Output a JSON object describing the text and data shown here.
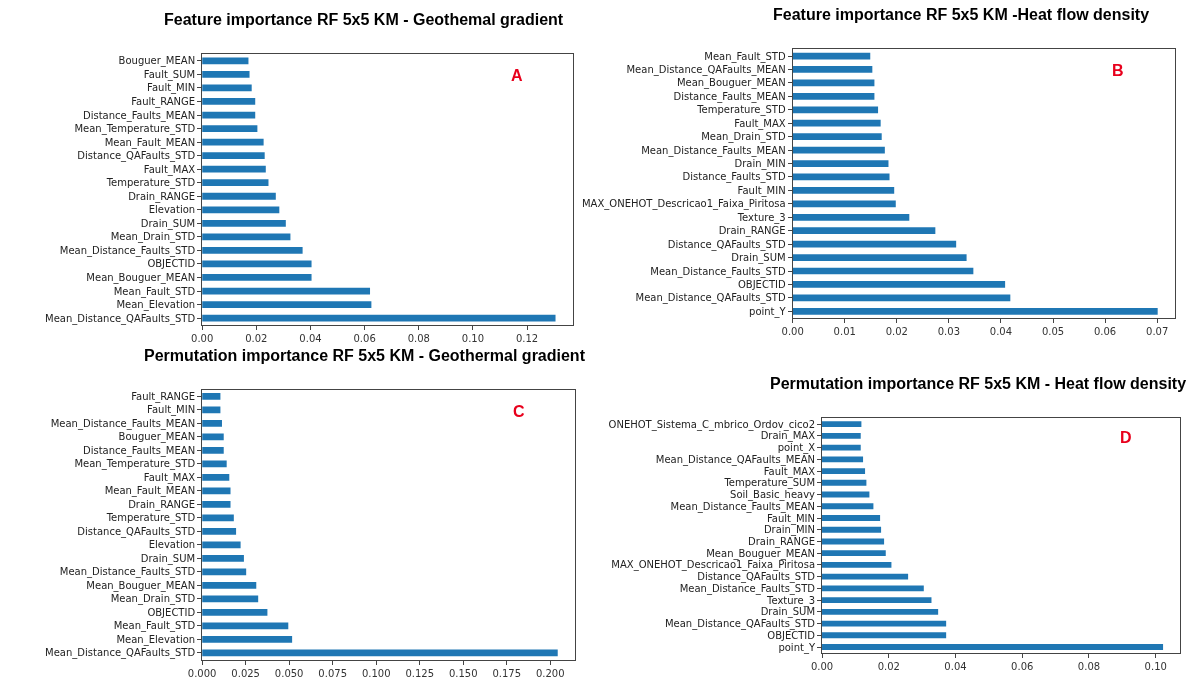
{
  "chart_data": [
    {
      "type": "bar",
      "orientation": "horizontal",
      "title": "Feature importance RF 5x5 KM - Geothemal gradient",
      "annotations": [
        "A"
      ],
      "color": "#1f77b4",
      "categories": [
        "Bouguer_MEAN",
        "Fault_SUM",
        "Fault_MIN",
        "Fault_RANGE",
        "Distance_Faults_MEAN",
        "Mean_Temperature_STD",
        "Mean_Fault_MEAN",
        "Distance_QAFaults_STD",
        "Fault_MAX",
        "Temperature_STD",
        "Drain_RANGE",
        "Elevation",
        "Drain_SUM",
        "Mean_Drain_STD",
        "Mean_Distance_Faults_STD",
        "OBJECTID",
        "Mean_Bouguer_MEAN",
        "Mean_Fault_STD",
        "Mean_Elevation",
        "Mean_Distance_QAFaults_STD"
      ],
      "values": [
        0.0171,
        0.0175,
        0.0183,
        0.0196,
        0.0196,
        0.0204,
        0.0227,
        0.0231,
        0.0235,
        0.0245,
        0.0272,
        0.0285,
        0.0309,
        0.0326,
        0.0371,
        0.0404,
        0.0404,
        0.062,
        0.0625,
        0.1305
      ],
      "xlim": [
        0,
        0.137
      ],
      "xticks": [
        {
          "value": 0,
          "label": "0.00"
        },
        {
          "value": 0.02,
          "label": "0.02"
        },
        {
          "value": 0.04,
          "label": "0.04"
        },
        {
          "value": 0.06,
          "label": "0.06"
        },
        {
          "value": 0.08,
          "label": "0.08"
        },
        {
          "value": 0.1,
          "label": "0.10"
        },
        {
          "value": 0.12,
          "label": "0.12"
        }
      ]
    },
    {
      "type": "bar",
      "orientation": "horizontal",
      "title": "Feature importance RF 5x5 KM -Heat flow density",
      "annotations": [
        "B"
      ],
      "color": "#1f77b4",
      "categories": [
        "Mean_Fault_STD",
        "Mean_Distance_QAFaults_MEAN",
        "Mean_Bouguer_MEAN",
        "Distance_Faults_MEAN",
        "Temperature_STD",
        "Fault_MAX",
        "Mean_Drain_STD",
        "Mean_Distance_Faults_MEAN",
        "Drain_MIN",
        "Distance_Faults_STD",
        "Fault_MIN",
        "MAX_ONEHOT_Descricao1_Faixa_Piritosa",
        "Texture_3",
        "Drain_RANGE",
        "Distance_QAFaults_STD",
        "Drain_SUM",
        "Mean_Distance_Faults_STD",
        "OBJECTID",
        "Mean_Distance_QAFaults_STD",
        "point_Y"
      ],
      "values": [
        0.0149,
        0.0153,
        0.0157,
        0.0157,
        0.0164,
        0.0169,
        0.0171,
        0.0177,
        0.0184,
        0.0186,
        0.0195,
        0.0198,
        0.0224,
        0.0274,
        0.0314,
        0.0334,
        0.0347,
        0.0408,
        0.0418,
        0.0701
      ],
      "xlim": [
        0,
        0.0735
      ],
      "xticks": [
        {
          "value": 0,
          "label": "0.00"
        },
        {
          "value": 0.01,
          "label": "0.01"
        },
        {
          "value": 0.02,
          "label": "0.02"
        },
        {
          "value": 0.03,
          "label": "0.03"
        },
        {
          "value": 0.04,
          "label": "0.04"
        },
        {
          "value": 0.05,
          "label": "0.05"
        },
        {
          "value": 0.06,
          "label": "0.06"
        },
        {
          "value": 0.07,
          "label": "0.07"
        }
      ]
    },
    {
      "type": "bar",
      "orientation": "horizontal",
      "title": "Permutation importance RF 5x5 KM - Geothermal gradient",
      "annotations": [
        "C"
      ],
      "color": "#1f77b4",
      "categories": [
        "Fault_RANGE",
        "Fault_MIN",
        "Mean_Distance_Faults_MEAN",
        "Bouguer_MEAN",
        "Distance_Faults_MEAN",
        "Mean_Temperature_STD",
        "Fault_MAX",
        "Mean_Fault_MEAN",
        "Drain_RANGE",
        "Temperature_STD",
        "Distance_QAFaults_STD",
        "Elevation",
        "Drain_SUM",
        "Mean_Distance_Faults_STD",
        "Mean_Bouguer_MEAN",
        "Mean_Drain_STD",
        "OBJECTID",
        "Mean_Fault_STD",
        "Mean_Elevation",
        "Mean_Distance_QAFaults_STD"
      ],
      "values": [
        0.0105,
        0.0105,
        0.0114,
        0.0124,
        0.0124,
        0.0141,
        0.0156,
        0.0163,
        0.0163,
        0.0182,
        0.0195,
        0.0221,
        0.024,
        0.0253,
        0.0311,
        0.0322,
        0.0375,
        0.0495,
        0.0517,
        0.2043
      ],
      "xlim": [
        0,
        0.2145
      ],
      "xticks": [
        {
          "value": 0,
          "label": "0.000"
        },
        {
          "value": 0.025,
          "label": "0.025"
        },
        {
          "value": 0.05,
          "label": "0.050"
        },
        {
          "value": 0.075,
          "label": "0.075"
        },
        {
          "value": 0.1,
          "label": "0.100"
        },
        {
          "value": 0.125,
          "label": "0.125"
        },
        {
          "value": 0.15,
          "label": "0.150"
        },
        {
          "value": 0.175,
          "label": "0.175"
        },
        {
          "value": 0.2,
          "label": "0.200"
        }
      ]
    },
    {
      "type": "bar",
      "orientation": "horizontal",
      "title": "Permutation importance RF 5x5 KM - Heat flow density",
      "annotations": [
        "D"
      ],
      "color": "#1f77b4",
      "categories": [
        "ONEHOT_Sistema_C_mbrico_Ordov_cico2",
        "Drain_MAX",
        "point_X",
        "Mean_Distance_QAFaults_MEAN",
        "Fault_MAX",
        "Temperature_SUM",
        "Soil_Basic_heavy",
        "Mean_Distance_Faults_MEAN",
        "Fault_MIN",
        "Drain_MIN",
        "Drain_RANGE",
        "Mean_Bouguer_MEAN",
        "MAX_ONEHOT_Descricao1_Faixa_Piritosa",
        "Distance_QAFaults_STD",
        "Mean_Distance_Faults_STD",
        "Texture_3",
        "Drain_SUM",
        "Mean_Distance_QAFaults_STD",
        "OBJECTID",
        "point_Y"
      ],
      "values": [
        0.0118,
        0.0116,
        0.0116,
        0.0123,
        0.0129,
        0.0133,
        0.0142,
        0.0154,
        0.0174,
        0.0177,
        0.0186,
        0.0191,
        0.0208,
        0.0258,
        0.0305,
        0.0328,
        0.0348,
        0.0372,
        0.0372,
        0.1022
      ],
      "xlim": [
        0,
        0.1073
      ],
      "xticks": [
        {
          "value": 0,
          "label": "0.00"
        },
        {
          "value": 0.02,
          "label": "0.02"
        },
        {
          "value": 0.04,
          "label": "0.04"
        },
        {
          "value": 0.06,
          "label": "0.06"
        },
        {
          "value": 0.08,
          "label": "0.08"
        },
        {
          "value": 0.1,
          "label": "0.10"
        }
      ]
    }
  ]
}
